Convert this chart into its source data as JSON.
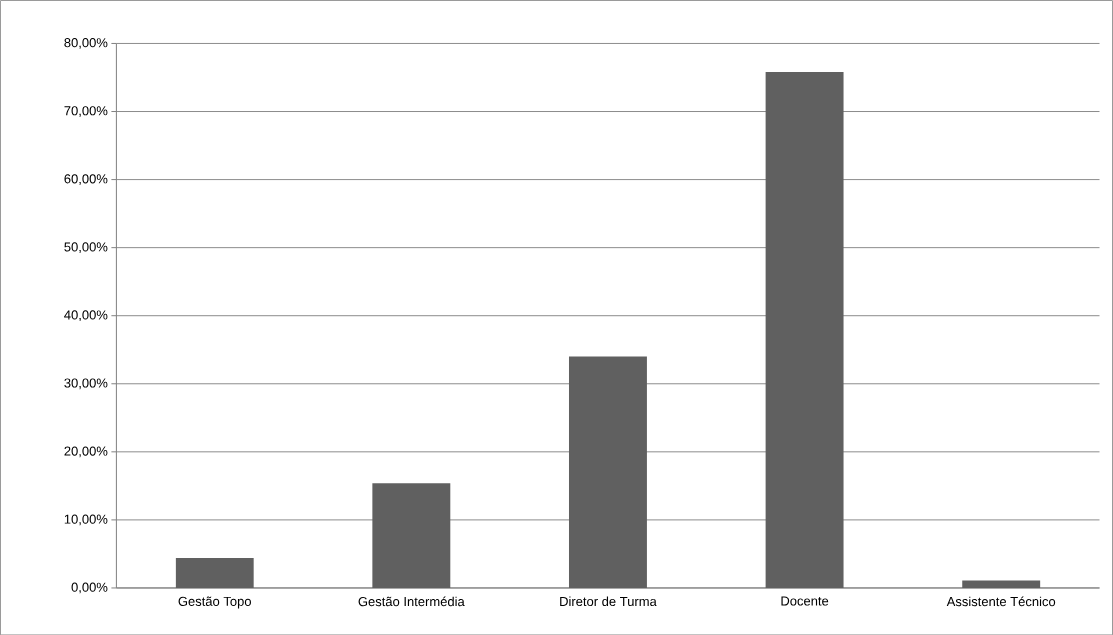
{
  "chart_data": {
    "type": "bar",
    "categories": [
      "Gestão Topo",
      "Gestão Intermédia",
      "Diretor de Turma",
      "Docente",
      "Assistente Técnico"
    ],
    "values": [
      4.4,
      15.4,
      34.0,
      75.8,
      1.1
    ],
    "color": "#606060",
    "ylim": [
      0,
      80
    ],
    "yticks": [
      {
        "value": 0,
        "label": "0,00%"
      },
      {
        "value": 10,
        "label": "10,00%"
      },
      {
        "value": 20,
        "label": "20,00%"
      },
      {
        "value": 30,
        "label": "30,00%"
      },
      {
        "value": 40,
        "label": "40,00%"
      },
      {
        "value": 50,
        "label": "50,00%"
      },
      {
        "value": 60,
        "label": "60,00%"
      },
      {
        "value": 70,
        "label": "70,00%"
      },
      {
        "value": 80,
        "label": "80,00%"
      }
    ],
    "grid": "y"
  }
}
